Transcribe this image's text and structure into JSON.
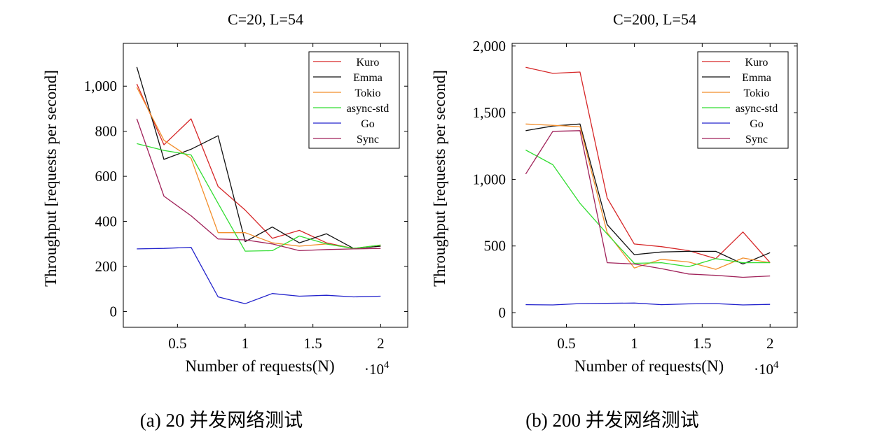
{
  "chart_data": [
    {
      "type": "line",
      "title": "C=20, L=54",
      "caption": "(a) 20 并发网络测试",
      "xlabel": "Number of requests(N)",
      "ylabel": "Throughput [requests per second]",
      "x_multiplier": "·10",
      "x_multiplier_exp": "4",
      "x": [
        0.2,
        0.4,
        0.6,
        0.8,
        1.0,
        1.2,
        1.4,
        1.6,
        1.8,
        2.0
      ],
      "xlim": [
        0.1,
        2.2
      ],
      "ylim": [
        -70,
        1190
      ],
      "xticks": [
        0.5,
        1,
        1.5,
        2
      ],
      "xtick_labels": [
        "0.5",
        "1",
        "1.5",
        "2"
      ],
      "yticks": [
        0,
        200,
        400,
        600,
        800,
        1000
      ],
      "ytick_labels": [
        "0",
        "200",
        "400",
        "600",
        "800",
        "1,000"
      ],
      "legend_position": "top-right",
      "series": [
        {
          "name": "Kuro",
          "color": "#d62728",
          "values": [
            1010,
            740,
            855,
            555,
            450,
            325,
            360,
            305,
            280,
            290
          ]
        },
        {
          "name": "Emma",
          "color": "#111111",
          "values": [
            1085,
            675,
            720,
            780,
            310,
            375,
            305,
            345,
            280,
            290
          ]
        },
        {
          "name": "Tokio",
          "color": "#f28e2b",
          "values": [
            995,
            760,
            680,
            350,
            350,
            305,
            290,
            300,
            280,
            295
          ]
        },
        {
          "name": "async-std",
          "color": "#33dd33",
          "values": [
            745,
            715,
            695,
            480,
            268,
            270,
            335,
            300,
            280,
            295
          ]
        },
        {
          "name": "Go",
          "color": "#2222cc",
          "values": [
            278,
            280,
            285,
            65,
            35,
            80,
            68,
            72,
            65,
            68
          ]
        },
        {
          "name": "Sync",
          "color": "#a0225a",
          "values": [
            855,
            512,
            425,
            322,
            318,
            300,
            270,
            275,
            278,
            280
          ]
        }
      ]
    },
    {
      "type": "line",
      "title": "C=200, L=54",
      "caption": "(b) 200 并发网络测试",
      "xlabel": "Number of requests(N)",
      "ylabel": "Throughput [requests per second]",
      "x_multiplier": "·10",
      "x_multiplier_exp": "4",
      "x": [
        0.2,
        0.4,
        0.6,
        0.8,
        1.0,
        1.2,
        1.4,
        1.6,
        1.8,
        2.0
      ],
      "xlim": [
        0.1,
        2.2
      ],
      "ylim": [
        -110,
        2020
      ],
      "xticks": [
        0.5,
        1,
        1.5,
        2
      ],
      "xtick_labels": [
        "0.5",
        "1",
        "1.5",
        "2"
      ],
      "yticks": [
        0,
        500,
        1000,
        1500,
        2000
      ],
      "ytick_labels": [
        "0",
        "500",
        "1,000",
        "1,500",
        "2,000"
      ],
      "legend_position": "top-right",
      "series": [
        {
          "name": "Kuro",
          "color": "#d62728",
          "values": [
            1840,
            1795,
            1805,
            860,
            515,
            495,
            465,
            405,
            605,
            375
          ]
        },
        {
          "name": "Emma",
          "color": "#111111",
          "values": [
            1365,
            1400,
            1415,
            660,
            435,
            455,
            460,
            460,
            365,
            450
          ]
        },
        {
          "name": "Tokio",
          "color": "#f28e2b",
          "values": [
            1415,
            1405,
            1395,
            600,
            335,
            400,
            380,
            325,
            410,
            375
          ]
        },
        {
          "name": "async-std",
          "color": "#33dd33",
          "values": [
            1220,
            1110,
            820,
            590,
            370,
            375,
            345,
            405,
            375,
            375
          ]
        },
        {
          "name": "Go",
          "color": "#2222cc",
          "values": [
            60,
            58,
            68,
            70,
            72,
            60,
            66,
            68,
            58,
            62
          ]
        },
        {
          "name": "Sync",
          "color": "#a0225a",
          "values": [
            1040,
            1360,
            1365,
            375,
            365,
            330,
            290,
            280,
            265,
            275
          ]
        }
      ]
    }
  ]
}
